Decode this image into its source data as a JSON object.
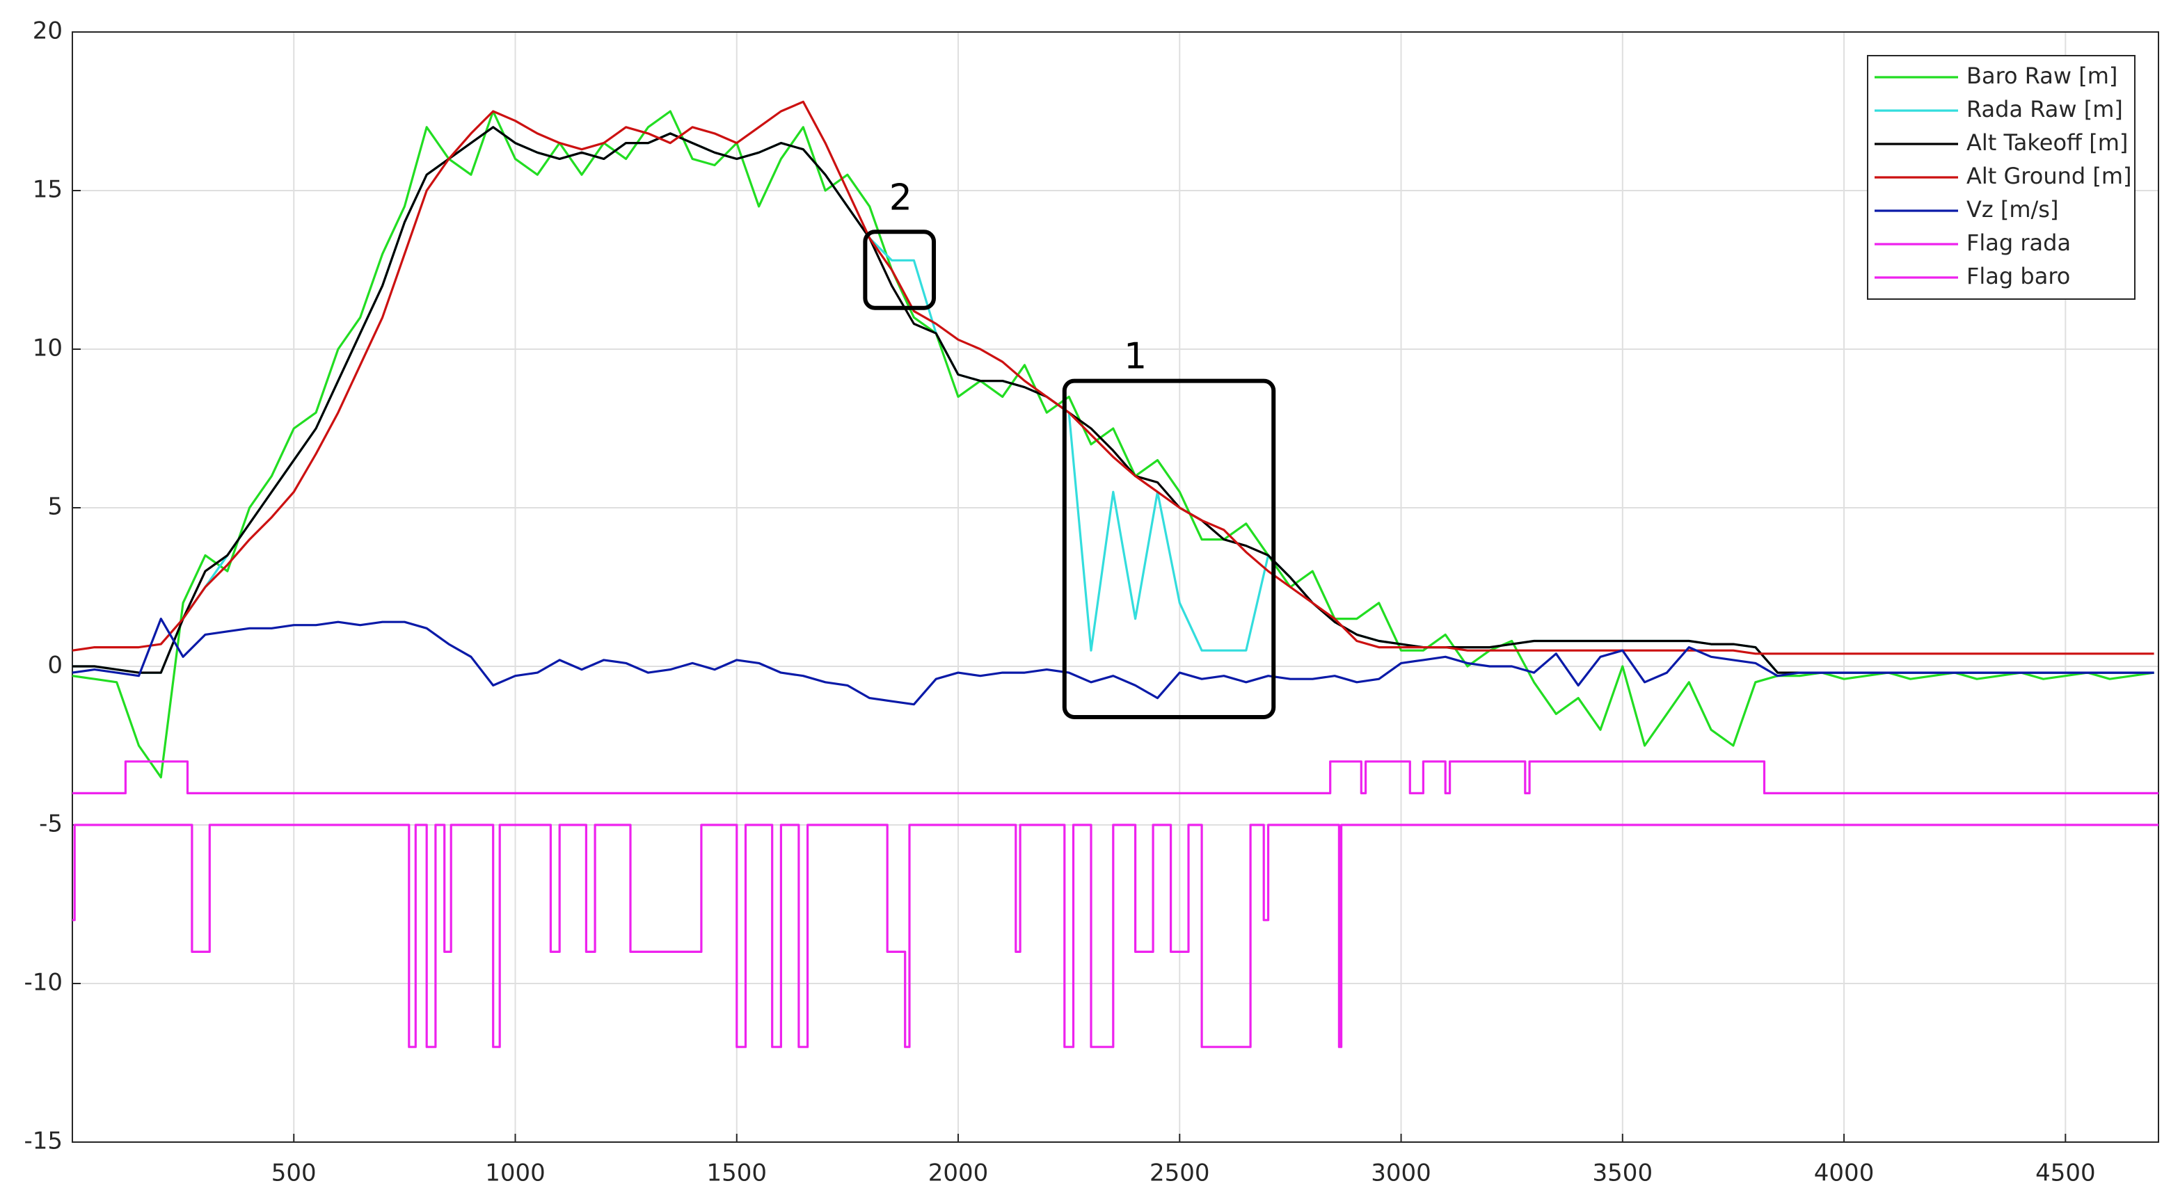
{
  "chart_data": {
    "type": "line",
    "xlim": [
      0,
      4710
    ],
    "ylim": [
      -15,
      20
    ],
    "xticks": [
      500,
      1000,
      1500,
      2000,
      2500,
      3000,
      3500,
      4000,
      4500
    ],
    "yticks": [
      -15,
      -10,
      -5,
      0,
      5,
      10,
      15,
      20
    ],
    "grid": true,
    "legend": "upper right",
    "annotations": [
      {
        "text": "1"
      },
      {
        "text": "2"
      }
    ],
    "x": [
      0,
      50,
      100,
      150,
      200,
      250,
      300,
      350,
      400,
      450,
      500,
      550,
      600,
      650,
      700,
      750,
      800,
      850,
      900,
      950,
      1000,
      1050,
      1100,
      1150,
      1200,
      1250,
      1300,
      1350,
      1400,
      1450,
      1500,
      1550,
      1600,
      1650,
      1700,
      1750,
      1800,
      1850,
      1900,
      1950,
      2000,
      2050,
      2100,
      2150,
      2200,
      2250,
      2300,
      2350,
      2400,
      2450,
      2500,
      2550,
      2600,
      2650,
      2700,
      2750,
      2800,
      2850,
      2900,
      2950,
      3000,
      3050,
      3100,
      3150,
      3200,
      3250,
      3300,
      3350,
      3400,
      3450,
      3500,
      3550,
      3600,
      3650,
      3700,
      3750,
      3800,
      3850,
      3900,
      3950,
      4000,
      4050,
      4100,
      4150,
      4200,
      4250,
      4300,
      4350,
      4400,
      4450,
      4500,
      4550,
      4600,
      4650,
      4700
    ],
    "series": [
      {
        "name": "Baro Raw [m]",
        "color": "#22dd22",
        "values": [
          -0.3,
          -0.4,
          -0.5,
          -2.5,
          -3.5,
          2,
          3.5,
          3,
          5,
          6,
          7.5,
          8,
          10,
          11,
          13,
          14.5,
          17,
          16,
          15.5,
          17.5,
          16,
          15.5,
          16.5,
          15.5,
          16.5,
          16,
          17,
          17.5,
          16,
          15.8,
          16.5,
          14.5,
          16,
          17,
          15,
          15.5,
          14.5,
          12.5,
          11,
          10.5,
          8.5,
          9,
          8.5,
          9.5,
          8,
          8.5,
          7,
          7.5,
          6,
          6.5,
          5.5,
          4,
          4,
          4.5,
          3.5,
          2.5,
          3,
          1.5,
          1.5,
          2,
          0.5,
          0.5,
          1,
          0,
          0.5,
          0.8,
          -0.5,
          -1.5,
          -1,
          -2,
          0,
          -2.5,
          -1.5,
          -0.5,
          -2,
          -2.5,
          -0.5,
          -0.3,
          -0.3,
          -0.2,
          -0.4,
          -0.3,
          -0.2,
          -0.4,
          -0.3,
          -0.2,
          -0.4,
          -0.3,
          -0.2,
          -0.4,
          -0.3,
          -0.2,
          -0.4,
          -0.3,
          -0.2
        ]
      },
      {
        "name": "Rada Raw [m]",
        "color": "#33dddd",
        "values": [
          0,
          0,
          -0.1,
          -0.2,
          -0.2,
          1.5,
          2.5,
          3.5,
          4.5,
          5.5,
          6.5,
          7.5,
          9,
          10.5,
          12,
          14,
          15.5,
          16,
          16.5,
          17,
          16.5,
          16.2,
          16,
          16.2,
          16,
          16.5,
          16.5,
          16.8,
          16.5,
          16.2,
          16,
          16.2,
          16.5,
          16.3,
          15.5,
          14.5,
          13.5,
          12.8,
          12.8,
          10.5,
          9.2,
          9,
          9,
          8.8,
          8.5,
          8,
          0.5,
          5.5,
          1.5,
          5.5,
          2,
          0.5,
          0.5,
          0.5,
          3.5,
          2.8,
          2,
          1.4,
          1,
          0.8,
          0.7,
          0.6,
          0.6,
          0.6,
          0.6,
          0.7,
          0.8,
          0.8,
          0.8,
          0.8,
          0.8,
          0.8,
          0.8,
          0.8,
          0.7,
          0.7,
          0.6,
          -0.2,
          -0.2,
          -0.2,
          -0.2,
          -0.2,
          -0.2,
          -0.2,
          -0.2,
          -0.2,
          -0.2,
          -0.2,
          -0.2,
          -0.2,
          -0.2,
          -0.2,
          -0.2,
          -0.2,
          -0.2
        ]
      },
      {
        "name": "Alt Takeoff [m]",
        "color": "#000000",
        "values": [
          0,
          0,
          -0.1,
          -0.2,
          -0.2,
          1.5,
          3,
          3.5,
          4.5,
          5.5,
          6.5,
          7.5,
          9,
          10.5,
          12,
          14,
          15.5,
          16,
          16.5,
          17,
          16.5,
          16.2,
          16,
          16.2,
          16,
          16.5,
          16.5,
          16.8,
          16.5,
          16.2,
          16,
          16.2,
          16.5,
          16.3,
          15.5,
          14.5,
          13.5,
          12,
          10.8,
          10.5,
          9.2,
          9,
          9,
          8.8,
          8.5,
          8,
          7.5,
          6.8,
          6,
          5.8,
          5,
          4.6,
          4,
          3.8,
          3.5,
          2.8,
          2,
          1.4,
          1,
          0.8,
          0.7,
          0.6,
          0.6,
          0.6,
          0.6,
          0.7,
          0.8,
          0.8,
          0.8,
          0.8,
          0.8,
          0.8,
          0.8,
          0.8,
          0.7,
          0.7,
          0.6,
          -0.2,
          -0.2,
          -0.2,
          -0.2,
          -0.2,
          -0.2,
          -0.2,
          -0.2,
          -0.2,
          -0.2,
          -0.2,
          -0.2,
          -0.2,
          -0.2,
          -0.2,
          -0.2,
          -0.2,
          -0.2
        ]
      },
      {
        "name": "Alt Ground [m]",
        "color": "#cc1111",
        "values": [
          0.5,
          0.6,
          0.6,
          0.6,
          0.7,
          1.5,
          2.5,
          3.2,
          4,
          4.7,
          5.5,
          6.7,
          8,
          9.5,
          11,
          13,
          15,
          16,
          16.8,
          17.5,
          17.2,
          16.8,
          16.5,
          16.3,
          16.5,
          17,
          16.8,
          16.5,
          17,
          16.8,
          16.5,
          17,
          17.5,
          17.8,
          16.5,
          15,
          13.5,
          12.5,
          11.2,
          10.8,
          10.3,
          10,
          9.6,
          9,
          8.5,
          8,
          7.3,
          6.6,
          6,
          5.5,
          5,
          4.6,
          4.3,
          3.6,
          3,
          2.5,
          2,
          1.5,
          0.8,
          0.6,
          0.6,
          0.6,
          0.6,
          0.5,
          0.5,
          0.5,
          0.5,
          0.5,
          0.5,
          0.5,
          0.5,
          0.5,
          0.5,
          0.5,
          0.5,
          0.5,
          0.4,
          0.4,
          0.4,
          0.4,
          0.4,
          0.4,
          0.4,
          0.4,
          0.4,
          0.4,
          0.4,
          0.4,
          0.4,
          0.4,
          0.4,
          0.4,
          0.4,
          0.4,
          0.4
        ]
      },
      {
        "name": "Vz [m/s]",
        "color": "#0a1aa8",
        "values": [
          -0.2,
          -0.1,
          -0.2,
          -0.3,
          1.5,
          0.3,
          1,
          1.1,
          1.2,
          1.2,
          1.3,
          1.3,
          1.4,
          1.3,
          1.4,
          1.4,
          1.2,
          0.7,
          0.3,
          -0.6,
          -0.3,
          -0.2,
          0.2,
          -0.1,
          0.2,
          0.1,
          -0.2,
          -0.1,
          0.1,
          -0.1,
          0.2,
          0.1,
          -0.2,
          -0.3,
          -0.5,
          -0.6,
          -1,
          -1.1,
          -1.2,
          -0.4,
          -0.2,
          -0.3,
          -0.2,
          -0.2,
          -0.1,
          -0.2,
          -0.5,
          -0.3,
          -0.6,
          -1,
          -0.2,
          -0.4,
          -0.3,
          -0.5,
          -0.3,
          -0.4,
          -0.4,
          -0.3,
          -0.5,
          -0.4,
          0.1,
          0.2,
          0.3,
          0.1,
          0,
          0,
          -0.2,
          0.4,
          -0.6,
          0.3,
          0.5,
          -0.5,
          -0.2,
          0.6,
          0.3,
          0.2,
          0.1,
          -0.3,
          -0.2,
          -0.2,
          -0.2,
          -0.2,
          -0.2,
          -0.2,
          -0.2,
          -0.2,
          -0.2,
          -0.2,
          -0.2,
          -0.2,
          -0.2,
          -0.2,
          -0.2,
          -0.2,
          -0.2
        ]
      },
      {
        "name": "Flag rada",
        "color": "#ee22ee",
        "x": [
          0,
          120,
          120,
          260,
          260,
          2840,
          2840,
          2910,
          2910,
          2920,
          2920,
          3020,
          3020,
          3050,
          3050,
          3100,
          3100,
          3110,
          3110,
          3280,
          3280,
          3290,
          3290,
          3820,
          3820,
          4710
        ],
        "values": [
          -4,
          -4,
          -3,
          -3,
          -4,
          -4,
          -3,
          -3,
          -4,
          -4,
          -3,
          -3,
          -4,
          -4,
          -3,
          -3,
          -4,
          -4,
          -3,
          -3,
          -4,
          -4,
          -3,
          -3,
          -4,
          -4
        ]
      },
      {
        "name": "Flag baro",
        "color": "#ee22ee",
        "x": [
          0,
          5,
          5,
          270,
          270,
          310,
          310,
          760,
          760,
          775,
          775,
          800,
          800,
          820,
          820,
          840,
          840,
          855,
          855,
          950,
          950,
          965,
          965,
          1080,
          1080,
          1100,
          1100,
          1160,
          1160,
          1180,
          1180,
          1260,
          1260,
          1420,
          1420,
          1500,
          1500,
          1520,
          1520,
          1580,
          1580,
          1600,
          1600,
          1640,
          1640,
          1660,
          1660,
          1840,
          1840,
          1880,
          1880,
          1890,
          1890,
          2130,
          2130,
          2140,
          2140,
          2240,
          2240,
          2260,
          2260,
          2300,
          2300,
          2350,
          2350,
          2400,
          2400,
          2440,
          2440,
          2480,
          2480,
          2520,
          2520,
          2550,
          2550,
          2660,
          2660,
          2690,
          2690,
          2700,
          2700,
          2860,
          2860,
          2865,
          2865,
          4710
        ],
        "values": [
          -8,
          -8,
          -5,
          -5,
          -9,
          -9,
          -5,
          -5,
          -12,
          -12,
          -5,
          -5,
          -12,
          -12,
          -5,
          -5,
          -9,
          -9,
          -5,
          -5,
          -12,
          -12,
          -5,
          -5,
          -9,
          -9,
          -5,
          -5,
          -9,
          -9,
          -5,
          -5,
          -9,
          -9,
          -5,
          -5,
          -12,
          -12,
          -5,
          -5,
          -12,
          -12,
          -5,
          -5,
          -12,
          -12,
          -5,
          -5,
          -9,
          -9,
          -12,
          -12,
          -5,
          -5,
          -9,
          -9,
          -5,
          -5,
          -12,
          -12,
          -5,
          -5,
          -12,
          -12,
          -5,
          -5,
          -9,
          -9,
          -5,
          -5,
          -9,
          -9,
          -5,
          -5,
          -12,
          -12,
          -5,
          -5,
          -8,
          -8,
          -5,
          -5,
          -12,
          -12,
          -5,
          -5
        ]
      }
    ]
  }
}
